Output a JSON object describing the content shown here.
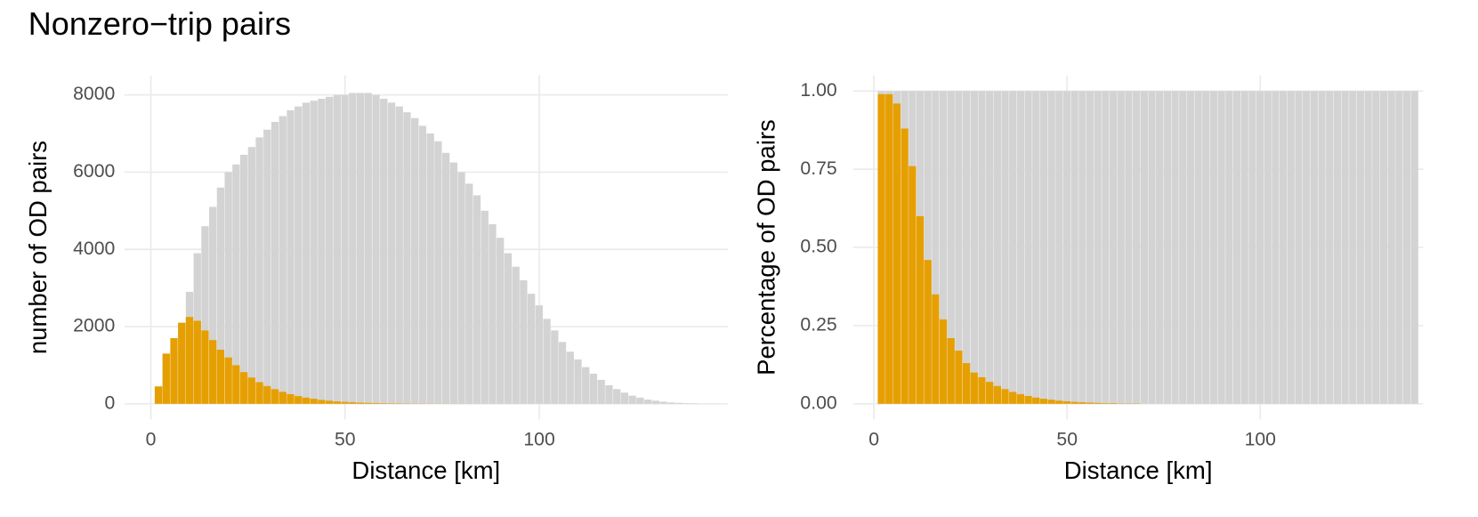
{
  "title": "Nonzero−trip pairs",
  "chart_data": [
    {
      "type": "histogram",
      "xlabel": "Distance [km]",
      "ylabel": "number of OD pairs",
      "bins": [
        1,
        3,
        5,
        7,
        9,
        11,
        13,
        15,
        17,
        19,
        21,
        23,
        25,
        27,
        29,
        31,
        33,
        35,
        37,
        39,
        41,
        43,
        45,
        47,
        49,
        51,
        53,
        55,
        57,
        59,
        61,
        63,
        65,
        67,
        69,
        71,
        73,
        75,
        77,
        79,
        81,
        83,
        85,
        87,
        89,
        91,
        93,
        95,
        97,
        99,
        101,
        103,
        105,
        107,
        109,
        111,
        113,
        115,
        117,
        119,
        121,
        123,
        125,
        127,
        129,
        131,
        133,
        135,
        137,
        139,
        141
      ],
      "series": [
        {
          "color": "#d3d3d3",
          "values": [
            450,
            1300,
            1400,
            2100,
            2900,
            3900,
            4600,
            5100,
            5600,
            6000,
            6200,
            6450,
            6650,
            6900,
            7100,
            7300,
            7450,
            7600,
            7700,
            7800,
            7850,
            7900,
            7950,
            8000,
            8000,
            8050,
            8050,
            8050,
            8000,
            7900,
            7800,
            7700,
            7550,
            7400,
            7200,
            7000,
            6800,
            6500,
            6250,
            6000,
            5700,
            5400,
            5000,
            4650,
            4300,
            3900,
            3550,
            3200,
            2850,
            2550,
            2200,
            1900,
            1600,
            1350,
            1150,
            950,
            780,
            620,
            480,
            380,
            290,
            210,
            160,
            110,
            80,
            55,
            35,
            25,
            15,
            10
          ]
        },
        {
          "color": "#e69f00",
          "values": [
            450,
            1300,
            1700,
            2100,
            2250,
            2150,
            1900,
            1650,
            1400,
            1200,
            1000,
            820,
            680,
            560,
            460,
            380,
            310,
            250,
            200,
            160,
            130,
            100,
            80,
            60,
            50,
            40,
            30,
            25,
            20,
            15,
            12,
            10,
            8,
            6,
            5,
            4,
            3,
            3,
            2,
            2,
            2,
            1,
            1,
            1,
            1,
            1,
            1,
            0,
            0,
            0,
            0,
            0,
            0,
            0,
            0,
            0,
            0,
            0,
            0,
            0,
            0,
            0,
            0,
            0,
            0,
            0,
            0,
            0,
            0,
            0
          ]
        }
      ],
      "xlim": [
        -6.8,
        148.5
      ],
      "ylim": [
        -405,
        8505
      ],
      "xticks": [
        0,
        50,
        100
      ],
      "yticks": [
        0,
        2000,
        4000,
        6000,
        8000
      ],
      "grid": true
    },
    {
      "type": "histogram",
      "xlabel": "Distance [km]",
      "ylabel": "Percentage of OD pairs",
      "bins": [
        1,
        3,
        5,
        7,
        9,
        11,
        13,
        15,
        17,
        19,
        21,
        23,
        25,
        27,
        29,
        31,
        33,
        35,
        37,
        39,
        41,
        43,
        45,
        47,
        49,
        51,
        53,
        55,
        57,
        59,
        61,
        63,
        65,
        67,
        69,
        71,
        73,
        75,
        77,
        79,
        81,
        83,
        85,
        87,
        89,
        91,
        93,
        95,
        97,
        99,
        101,
        103,
        105,
        107,
        109,
        111,
        113,
        115,
        117,
        119,
        121,
        123,
        125,
        127,
        129,
        131,
        133,
        135,
        137,
        139,
        141
      ],
      "series": [
        {
          "color": "#d3d3d3",
          "values": [
            1,
            1,
            1,
            1,
            1,
            1,
            1,
            1,
            1,
            1,
            1,
            1,
            1,
            1,
            1,
            1,
            1,
            1,
            1,
            1,
            1,
            1,
            1,
            1,
            1,
            1,
            1,
            1,
            1,
            1,
            1,
            1,
            1,
            1,
            1,
            1,
            1,
            1,
            1,
            1,
            1,
            1,
            1,
            1,
            1,
            1,
            1,
            1,
            1,
            1,
            1,
            1,
            1,
            1,
            1,
            1,
            1,
            1,
            1,
            1,
            1,
            1,
            1,
            1,
            1,
            1,
            1,
            1,
            1,
            1
          ]
        },
        {
          "color": "#e69f00",
          "values": [
            0.99,
            0.99,
            0.96,
            0.88,
            0.76,
            0.6,
            0.46,
            0.35,
            0.27,
            0.21,
            0.17,
            0.13,
            0.1,
            0.085,
            0.07,
            0.057,
            0.047,
            0.038,
            0.031,
            0.025,
            0.02,
            0.016,
            0.013,
            0.01,
            0.008,
            0.006,
            0.005,
            0.004,
            0.003,
            0.002,
            0.002,
            0.001,
            0.001,
            0.001,
            0,
            0,
            0,
            0,
            0,
            0,
            0,
            0,
            0,
            0,
            0,
            0,
            0,
            0,
            0,
            0,
            0,
            0,
            0,
            0,
            0,
            0,
            0,
            0,
            0,
            0,
            0,
            0,
            0,
            0,
            0,
            0,
            0,
            0,
            0,
            0
          ]
        }
      ],
      "xlim": [
        -5.4,
        142.2
      ],
      "ylim": [
        -0.05,
        1.05
      ],
      "xticks": [
        0,
        50,
        100
      ],
      "yticks": [
        {
          "value": 0,
          "label": "0.00"
        },
        {
          "value": 0.25,
          "label": "0.25"
        },
        {
          "value": 0.5,
          "label": "0.50"
        },
        {
          "value": 0.75,
          "label": "0.75"
        },
        {
          "value": 1,
          "label": "1.00"
        }
      ],
      "grid": true
    }
  ]
}
